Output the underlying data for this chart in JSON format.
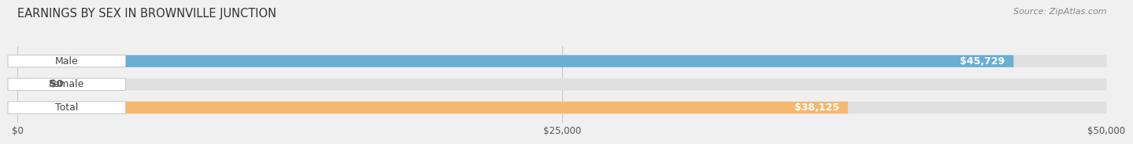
{
  "title": "EARNINGS BY SEX IN BROWNVILLE JUNCTION",
  "source": "Source: ZipAtlas.com",
  "categories": [
    "Male",
    "Female",
    "Total"
  ],
  "values": [
    45729,
    0,
    38125
  ],
  "bar_colors": [
    "#6aaed6",
    "#f088a8",
    "#f5b870"
  ],
  "bar_labels": [
    "$45,729",
    "$0",
    "$38,125"
  ],
  "xlim": [
    0,
    50000
  ],
  "xtick_labels": [
    "$0",
    "$25,000",
    "$50,000"
  ],
  "bg_color": "#f0f0f0",
  "bar_bg_color": "#e0e0e0",
  "label_fontsize": 9,
  "title_fontsize": 10.5,
  "source_fontsize": 8,
  "bar_height": 0.52,
  "value_label_color": "#ffffff",
  "zero_label_color": "#555555",
  "pill_bg": "#ffffff",
  "pill_edge": "#cccccc"
}
